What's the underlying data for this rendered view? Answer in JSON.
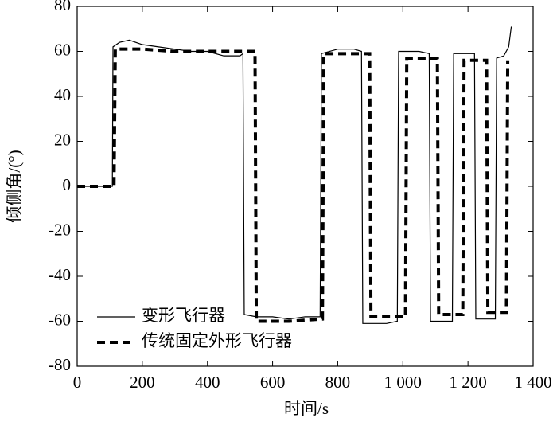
{
  "chart_data": {
    "type": "line",
    "xlabel": "时间/s",
    "ylabel": "倾侧角/(°)",
    "xlim": [
      0,
      1400
    ],
    "ylim": [
      -80,
      80
    ],
    "xticks": [
      0,
      200,
      400,
      600,
      800,
      {
        "value": 1000,
        "label": "1 000"
      },
      {
        "value": 1200,
        "label": "1 200"
      },
      {
        "value": 1400,
        "label": "1 400"
      }
    ],
    "yticks": [
      -80,
      -60,
      -40,
      -20,
      0,
      20,
      40,
      60,
      80
    ],
    "legend": "lower left",
    "series": [
      {
        "name": "变形飞行器",
        "color": "#000000",
        "linestyle": "solid",
        "x": [
          0,
          108,
          110,
          130,
          160,
          200,
          250,
          300,
          350,
          400,
          450,
          500,
          509,
          513,
          550,
          600,
          650,
          700,
          746,
          750,
          800,
          850,
          873,
          877,
          950,
          983,
          987,
          1050,
          1081,
          1085,
          1152,
          1156,
          1220,
          1224,
          1284,
          1288,
          1310,
          1325,
          1333
        ],
        "values": [
          0,
          0,
          62,
          64,
          65,
          63,
          62,
          61,
          60,
          60,
          58,
          58,
          59,
          -57,
          -58,
          -58,
          -59,
          -58,
          -58,
          59,
          61,
          61,
          60,
          -61,
          -61,
          -60,
          60,
          60,
          59,
          -60,
          -60,
          59,
          59,
          -59,
          -59,
          57,
          58,
          62,
          71
        ]
      },
      {
        "name": "传统固定外形飞行器",
        "color": "#000000",
        "linestyle": "dashed",
        "x": [
          0,
          113,
          117,
          200,
          300,
          400,
          546,
          550,
          650,
          753,
          757,
          850,
          898,
          902,
          1008,
          1012,
          1106,
          1110,
          1184,
          1188,
          1257,
          1261,
          1318,
          1322
        ],
        "values": [
          0,
          0,
          61,
          61,
          60,
          60,
          60,
          -60,
          -60,
          -59,
          59,
          59,
          59,
          -58,
          -58,
          57,
          57,
          -57,
          -57,
          56,
          56,
          -56,
          -56,
          56
        ]
      }
    ]
  }
}
